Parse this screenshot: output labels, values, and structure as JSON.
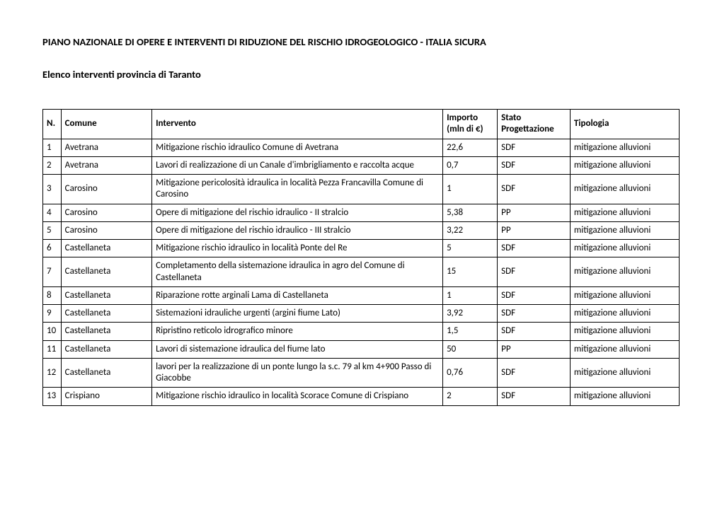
{
  "title": "PIANO NAZIONALE DI OPERE E INTERVENTI DI RIDUZIONE DEL RISCHIO IDROGEOLOGICO - ITALIA SICURA",
  "subtitle": "Elenco interventi provincia di Taranto",
  "headers": {
    "n": "N.",
    "comune": "Comune",
    "intervento": "Intervento",
    "importo": "Importo (mln di €)",
    "stato": "Stato Progettazione",
    "tipologia": "Tipologia"
  },
  "rows": [
    {
      "n": "1",
      "comune": "Avetrana",
      "intervento": "Mitigazione rischio idraulico Comune di Avetrana",
      "importo": "22,6",
      "stato": "SDF",
      "tipologia": "mitigazione alluvioni"
    },
    {
      "n": "2",
      "comune": "Avetrana",
      "intervento": "Lavori di realizzazione di un Canale d'imbrigliamento e raccolta acque",
      "importo": "0,7",
      "stato": "SDF",
      "tipologia": "mitigazione alluvioni"
    },
    {
      "n": "3",
      "comune": "Carosino",
      "intervento": "Mitigazione pericolosità idraulica in località Pezza Francavilla Comune di Carosino",
      "importo": "1",
      "stato": "SDF",
      "tipologia": "mitigazione alluvioni"
    },
    {
      "n": "4",
      "comune": "Carosino",
      "intervento": "Opere di mitigazione del rischio idraulico - II stralcio",
      "importo": "5,38",
      "stato": "PP",
      "tipologia": "mitigazione alluvioni"
    },
    {
      "n": "5",
      "comune": "Carosino",
      "intervento": "Opere di mitigazione del rischio idraulico - III stralcio",
      "importo": "3,22",
      "stato": "PP",
      "tipologia": "mitigazione alluvioni"
    },
    {
      "n": "6",
      "comune": "Castellaneta",
      "intervento": "Mitigazione rischio idraulico in località Ponte del Re",
      "importo": "5",
      "stato": "SDF",
      "tipologia": "mitigazione alluvioni"
    },
    {
      "n": "7",
      "comune": "Castellaneta",
      "intervento": "Completamento della sistemazione idraulica in agro del Comune di Castellaneta",
      "importo": "15",
      "stato": "SDF",
      "tipologia": "mitigazione alluvioni"
    },
    {
      "n": "8",
      "comune": "Castellaneta",
      "intervento": "Riparazione rotte arginali Lama di Castellaneta",
      "importo": "1",
      "stato": "SDF",
      "tipologia": "mitigazione alluvioni"
    },
    {
      "n": "9",
      "comune": "Castellaneta",
      "intervento": "Sistemazioni idrauliche urgenti (argini fiume Lato)",
      "importo": "3,92",
      "stato": "SDF",
      "tipologia": "mitigazione alluvioni"
    },
    {
      "n": "10",
      "comune": "Castellaneta",
      "intervento": "Ripristino reticolo idrografico minore",
      "importo": "1,5",
      "stato": "SDF",
      "tipologia": "mitigazione alluvioni"
    },
    {
      "n": "11",
      "comune": "Castellaneta",
      "intervento": "Lavori di sistemazione idraulica del fiume lato",
      "importo": "50",
      "stato": "PP",
      "tipologia": "mitigazione alluvioni"
    },
    {
      "n": "12",
      "comune": "Castellaneta",
      "intervento": "lavori per la realizzazione di un ponte lungo la s.c. 79 al km 4+900 Passo di Giacobbe",
      "importo": "0,76",
      "stato": "SDF",
      "tipologia": "mitigazione alluvioni"
    },
    {
      "n": "13",
      "comune": "Crispiano",
      "intervento": "Mitigazione rischio idraulico in località Scorace Comune di Crispiano",
      "importo": "2",
      "stato": "SDF",
      "tipologia": "mitigazione alluvioni"
    }
  ]
}
